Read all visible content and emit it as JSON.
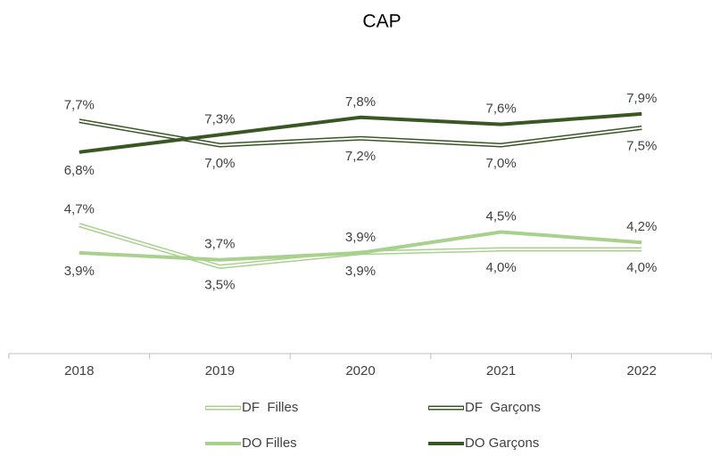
{
  "chart_data": {
    "type": "line",
    "title": "CAP",
    "categories": [
      "2018",
      "2019",
      "2020",
      "2021",
      "2022"
    ],
    "series": [
      {
        "name": "DF  Filles",
        "color": "#a9d18e",
        "style": "hollow",
        "values": [
          4.7,
          3.5,
          3.9,
          4.0,
          4.0
        ],
        "value_labels": [
          "4,7%",
          "3,5%",
          "3,9%",
          "4,0%",
          "4,0%"
        ]
      },
      {
        "name": "DF  Garçons",
        "color": "#385723",
        "style": "hollow",
        "values": [
          7.7,
          7.0,
          7.2,
          7.0,
          7.5
        ],
        "value_labels": [
          "7,7%",
          "7,0%",
          "7,2%",
          "7,0%",
          "7,5%"
        ]
      },
      {
        "name": "DO Filles",
        "color": "#a9d18e",
        "style": "solid",
        "values": [
          3.9,
          3.7,
          3.9,
          4.5,
          4.2
        ],
        "value_labels": [
          "3,9%",
          "3,7%",
          "3,9%",
          "4,5%",
          "4,2%"
        ]
      },
      {
        "name": "DO Garçons",
        "color": "#385723",
        "style": "solid",
        "values": [
          6.8,
          7.3,
          7.8,
          7.6,
          7.9
        ],
        "value_labels": [
          "6,8%",
          "7,3%",
          "7,8%",
          "7,6%",
          "7,9%"
        ]
      }
    ],
    "ylim": [
      1,
      10
    ],
    "legend": "bottom"
  }
}
